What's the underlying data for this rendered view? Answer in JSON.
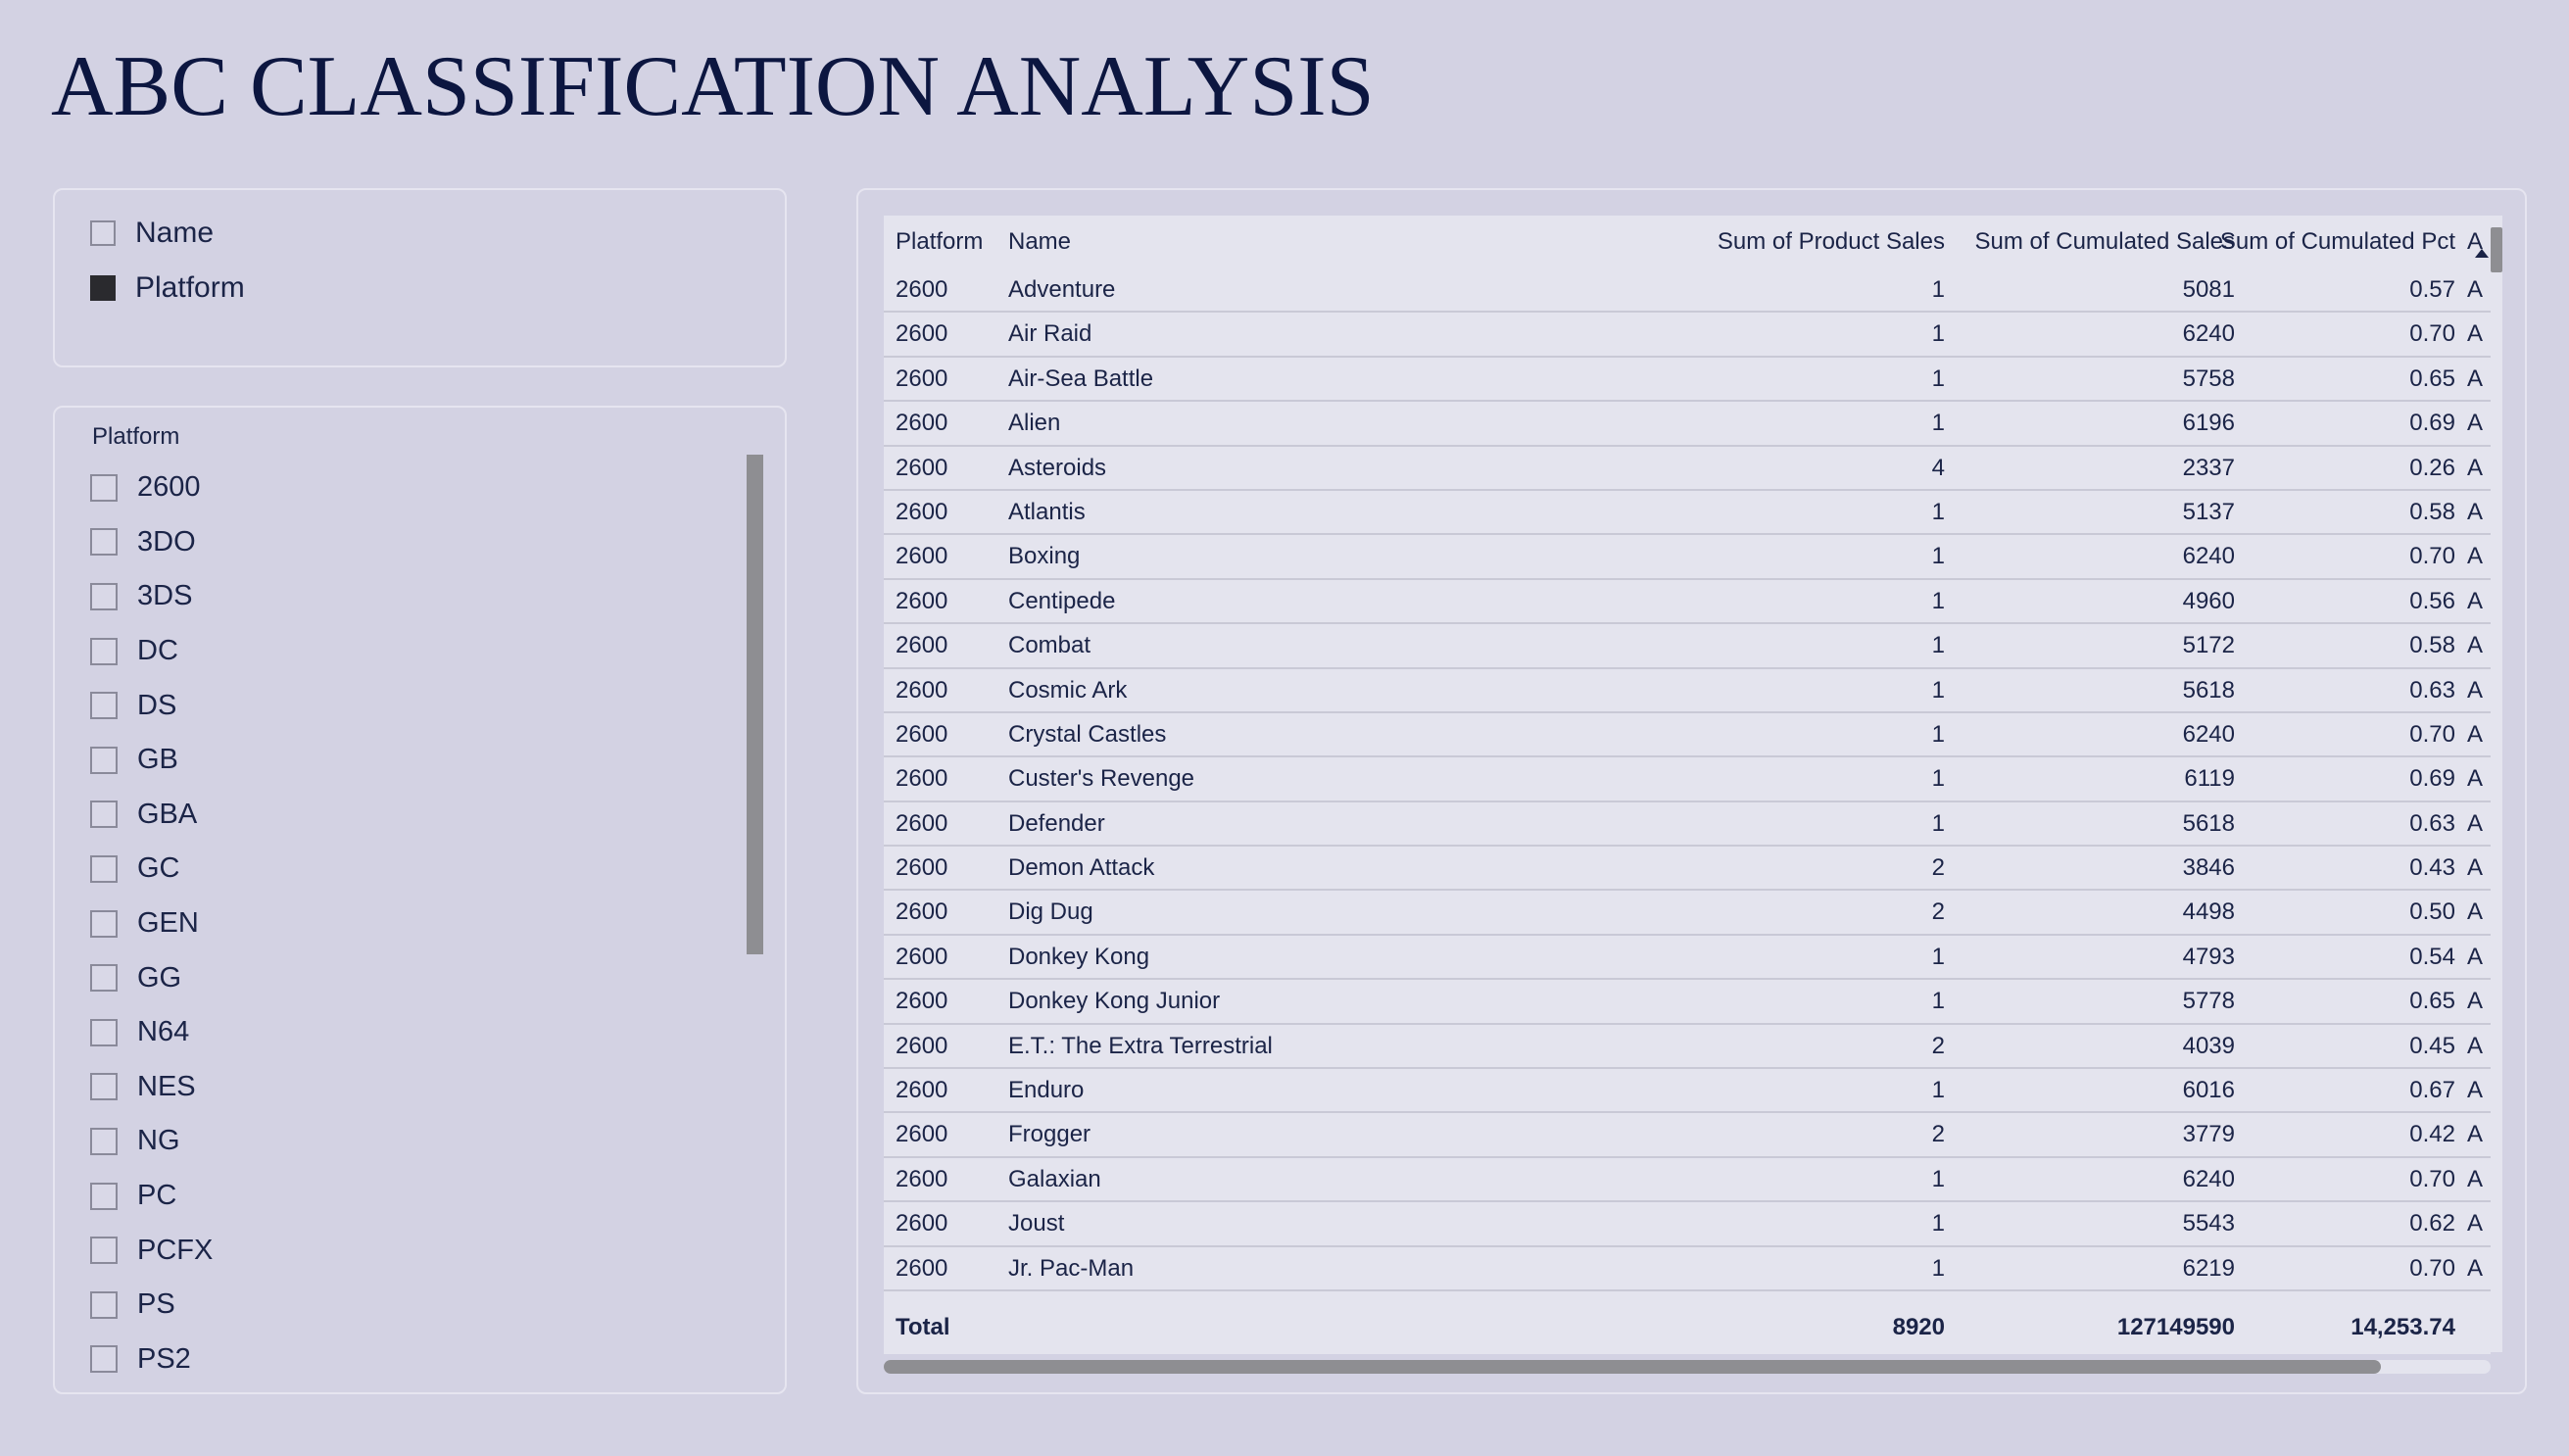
{
  "page": {
    "title": "ABC CLASSIFICATION ANALYSIS"
  },
  "field_selector": {
    "items": [
      {
        "label": "Name",
        "checked": false
      },
      {
        "label": "Platform",
        "checked": true
      }
    ]
  },
  "slicer": {
    "header": "Platform",
    "items": [
      "2600",
      "3DO",
      "3DS",
      "DC",
      "DS",
      "GB",
      "GBA",
      "GC",
      "GEN",
      "GG",
      "N64",
      "NES",
      "NG",
      "PC",
      "PCFX",
      "PS",
      "PS2"
    ]
  },
  "table": {
    "columns": [
      "Platform",
      "Name",
      "Sum of Product Sales",
      "Sum of Cumulated Sales",
      "Sum of Cumulated Pct",
      "A"
    ],
    "rows": [
      [
        "2600",
        "Adventure",
        "1",
        "5081",
        "0.57",
        "A"
      ],
      [
        "2600",
        "Air Raid",
        "1",
        "6240",
        "0.70",
        "A"
      ],
      [
        "2600",
        "Air-Sea Battle",
        "1",
        "5758",
        "0.65",
        "A"
      ],
      [
        "2600",
        "Alien",
        "1",
        "6196",
        "0.69",
        "A"
      ],
      [
        "2600",
        "Asteroids",
        "4",
        "2337",
        "0.26",
        "A"
      ],
      [
        "2600",
        "Atlantis",
        "1",
        "5137",
        "0.58",
        "A"
      ],
      [
        "2600",
        "Boxing",
        "1",
        "6240",
        "0.70",
        "A"
      ],
      [
        "2600",
        "Centipede",
        "1",
        "4960",
        "0.56",
        "A"
      ],
      [
        "2600",
        "Combat",
        "1",
        "5172",
        "0.58",
        "A"
      ],
      [
        "2600",
        "Cosmic Ark",
        "1",
        "5618",
        "0.63",
        "A"
      ],
      [
        "2600",
        "Crystal Castles",
        "1",
        "6240",
        "0.70",
        "A"
      ],
      [
        "2600",
        "Custer's Revenge",
        "1",
        "6119",
        "0.69",
        "A"
      ],
      [
        "2600",
        "Defender",
        "1",
        "5618",
        "0.63",
        "A"
      ],
      [
        "2600",
        "Demon Attack",
        "2",
        "3846",
        "0.43",
        "A"
      ],
      [
        "2600",
        "Dig Dug",
        "2",
        "4498",
        "0.50",
        "A"
      ],
      [
        "2600",
        "Donkey Kong",
        "1",
        "4793",
        "0.54",
        "A"
      ],
      [
        "2600",
        "Donkey Kong Junior",
        "1",
        "5778",
        "0.65",
        "A"
      ],
      [
        "2600",
        "E.T.: The Extra Terrestrial",
        "2",
        "4039",
        "0.45",
        "A"
      ],
      [
        "2600",
        "Enduro",
        "1",
        "6016",
        "0.67",
        "A"
      ],
      [
        "2600",
        "Frogger",
        "2",
        "3779",
        "0.42",
        "A"
      ],
      [
        "2600",
        "Galaxian",
        "1",
        "6240",
        "0.70",
        "A"
      ],
      [
        "2600",
        "Joust",
        "1",
        "5543",
        "0.62",
        "A"
      ],
      [
        "2600",
        "Jr. Pac-Man",
        "1",
        "6219",
        "0.70",
        "A"
      ]
    ],
    "total": {
      "label": "Total",
      "product_sales": "8920",
      "cumulated_sales": "127149590",
      "cumulated_pct": "14,253.74"
    }
  }
}
